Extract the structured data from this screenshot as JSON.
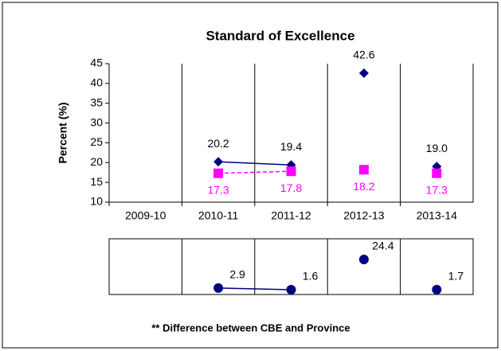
{
  "chart_data": [
    {
      "type": "line",
      "title": "Standard of Excellence",
      "ylabel": "Percent (%)",
      "categories": [
        "2009-10",
        "2010-11",
        "2011-12",
        "2012-13",
        "2013-14"
      ],
      "ylim": [
        10,
        45
      ],
      "yticks": [
        10,
        15,
        20,
        25,
        30,
        35,
        40,
        45
      ],
      "vertical_grid": true,
      "series": [
        {
          "color": "#000080",
          "marker": "diamond",
          "line": "solid",
          "label_position": "above",
          "values": [
            null,
            20.2,
            19.4,
            null,
            null
          ],
          "value_labels": [
            null,
            "20.2",
            "19.4",
            null,
            null
          ]
        },
        {
          "color": "#000080",
          "marker": "diamond",
          "line": "none",
          "label_position": "above",
          "values": [
            null,
            null,
            null,
            42.6,
            19.0
          ],
          "value_labels": [
            null,
            null,
            null,
            "42.6",
            "19.0"
          ]
        },
        {
          "color": "#ff00ff",
          "marker": "square",
          "line": "dashed",
          "label_position": "below",
          "values": [
            null,
            17.3,
            17.8,
            null,
            null
          ],
          "value_labels": [
            null,
            "17.3",
            "17.8",
            null,
            null
          ]
        },
        {
          "color": "#ff00ff",
          "marker": "square",
          "line": "none",
          "label_position": "below",
          "values": [
            null,
            null,
            null,
            18.2,
            17.3
          ],
          "value_labels": [
            null,
            null,
            null,
            "18.2",
            "17.3"
          ]
        }
      ]
    },
    {
      "type": "line",
      "caption": "** Difference between CBE and Province",
      "ylim": [
        -2,
        40
      ],
      "vertical_grid": true,
      "series": [
        {
          "color": "#000080",
          "marker": "circle",
          "line": "solid",
          "label_position": "right",
          "values": [
            null,
            2.9,
            1.6,
            null,
            null
          ]
        },
        {
          "color": "#000080",
          "marker": "circle",
          "line": "none",
          "label_position": "right",
          "values": [
            null,
            null,
            null,
            24.4,
            1.7
          ]
        }
      ]
    }
  ]
}
